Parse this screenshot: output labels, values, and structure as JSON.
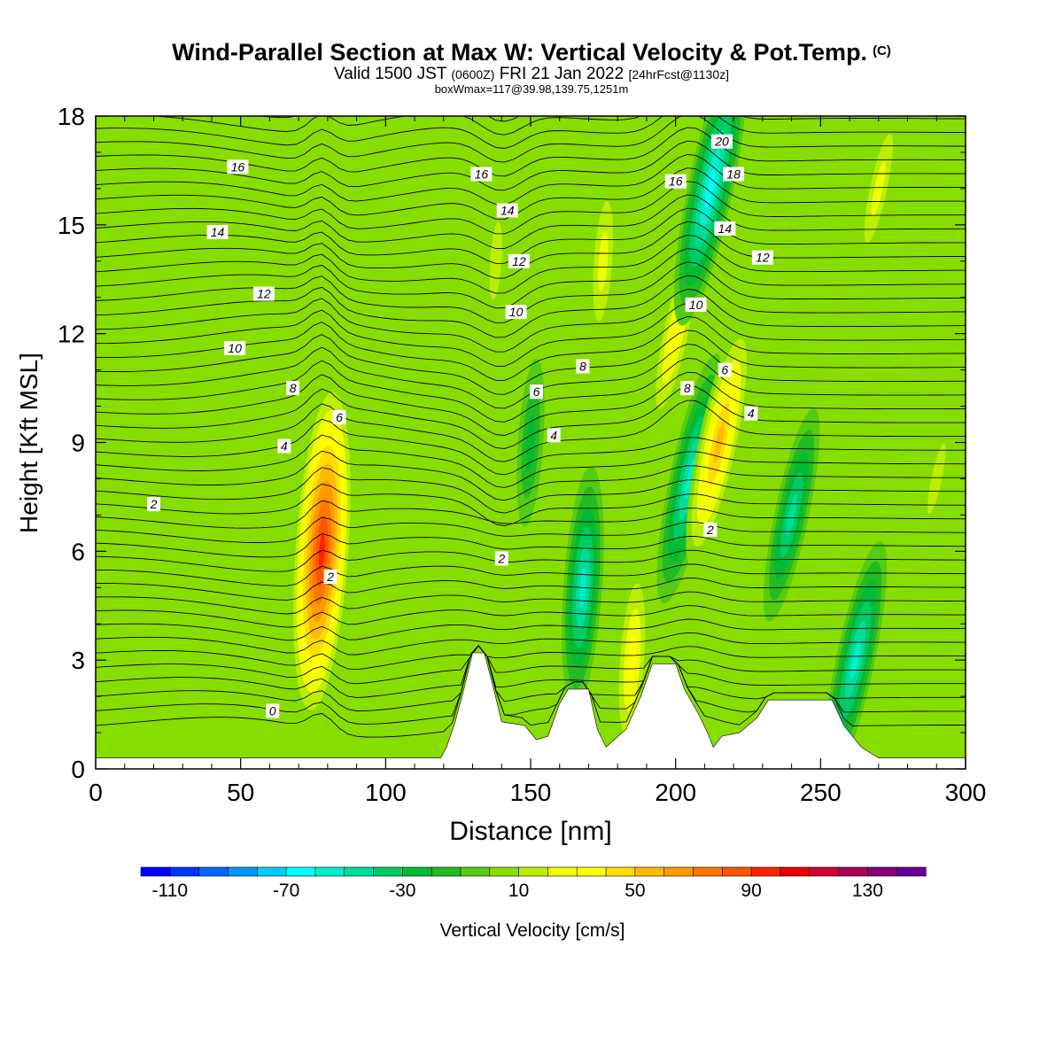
{
  "title": {
    "main": "Wind-Parallel Section at Max W: Vertical Velocity & Pot.Temp.",
    "copyright": "(C)",
    "valid_prefix": "Valid 1500 JST",
    "valid_utc": "(0600Z)",
    "valid_date": "FRI 21 Jan 2022",
    "forecast": "[24hrFcst@1130z]",
    "box_info": "boxWmax=117@39.98,139.75,1251m"
  },
  "chart_data": {
    "type": "heatmap",
    "xlabel": "Distance [nm]",
    "ylabel": "Height [Kft MSL]",
    "xlim": [
      0,
      300
    ],
    "ylim": [
      0,
      18
    ],
    "x_ticks": [
      "0",
      "50",
      "100",
      "150",
      "200",
      "250",
      "300"
    ],
    "y_ticks": [
      "0",
      "3",
      "6",
      "9",
      "12",
      "15",
      "18"
    ],
    "colorbar": {
      "label": "Vertical Velocity [cm/s]",
      "range": [
        -120,
        150
      ],
      "step": 10,
      "tick_labels": [
        "-110",
        "-70",
        "-30",
        "10",
        "50",
        "90",
        "130"
      ],
      "colors": [
        "#0000ff",
        "#0033ff",
        "#0066ff",
        "#0099ff",
        "#00ccff",
        "#00ffff",
        "#00eecc",
        "#00dd99",
        "#00cc66",
        "#00bb33",
        "#22bb22",
        "#55cc11",
        "#88dd00",
        "#bbee00",
        "#eeff00",
        "#ffff00",
        "#ffdd00",
        "#ffbb00",
        "#ff9900",
        "#ff7700",
        "#ff5500",
        "#ff2200",
        "#ee0000",
        "#cc0033",
        "#aa0055",
        "#880077",
        "#660099"
      ]
    },
    "background_velocity": 0,
    "velocity_features": [
      {
        "x": 78,
        "y": 6,
        "value": 100
      },
      {
        "x": 138,
        "y": 14,
        "value": 20
      },
      {
        "x": 150,
        "y": 9,
        "value": -25
      },
      {
        "x": 168,
        "y": 5,
        "value": -55
      },
      {
        "x": 175,
        "y": 14,
        "value": 30
      },
      {
        "x": 185,
        "y": 3,
        "value": 40
      },
      {
        "x": 200,
        "y": 12,
        "value": 40
      },
      {
        "x": 205,
        "y": 8,
        "value": -60
      },
      {
        "x": 212,
        "y": 16,
        "value": -70
      },
      {
        "x": 215,
        "y": 9,
        "value": 60
      },
      {
        "x": 240,
        "y": 7,
        "value": -45
      },
      {
        "x": 262,
        "y": 3,
        "value": -55
      },
      {
        "x": 270,
        "y": 16,
        "value": 25
      },
      {
        "x": 290,
        "y": 8,
        "value": 15
      }
    ],
    "theta_labels": [
      {
        "text": "0",
        "x": 61,
        "y": 1.6
      },
      {
        "text": "2",
        "x": 20,
        "y": 7.3
      },
      {
        "text": "2",
        "x": 81,
        "y": 5.3
      },
      {
        "text": "2",
        "x": 140,
        "y": 5.8
      },
      {
        "text": "2",
        "x": 212,
        "y": 6.6
      },
      {
        "text": "4",
        "x": 65,
        "y": 8.9
      },
      {
        "text": "4",
        "x": 158,
        "y": 9.2
      },
      {
        "text": "4",
        "x": 226,
        "y": 9.8
      },
      {
        "text": "6",
        "x": 84,
        "y": 9.7
      },
      {
        "text": "6",
        "x": 152,
        "y": 10.4
      },
      {
        "text": "6",
        "x": 217,
        "y": 11.0
      },
      {
        "text": "8",
        "x": 68,
        "y": 10.5
      },
      {
        "text": "8",
        "x": 168,
        "y": 11.1
      },
      {
        "text": "8",
        "x": 204,
        "y": 10.5
      },
      {
        "text": "10",
        "x": 48,
        "y": 11.6
      },
      {
        "text": "10",
        "x": 145,
        "y": 12.6
      },
      {
        "text": "10",
        "x": 207,
        "y": 12.8
      },
      {
        "text": "12",
        "x": 58,
        "y": 13.1
      },
      {
        "text": "12",
        "x": 146,
        "y": 14.0
      },
      {
        "text": "12",
        "x": 230,
        "y": 14.1
      },
      {
        "text": "14",
        "x": 42,
        "y": 14.8
      },
      {
        "text": "14",
        "x": 142,
        "y": 15.4
      },
      {
        "text": "14",
        "x": 217,
        "y": 14.9
      },
      {
        "text": "16",
        "x": 49,
        "y": 16.6
      },
      {
        "text": "16",
        "x": 133,
        "y": 16.4
      },
      {
        "text": "16",
        "x": 200,
        "y": 16.2
      },
      {
        "text": "18",
        "x": 220,
        "y": 16.4
      },
      {
        "text": "20",
        "x": 216,
        "y": 17.3
      }
    ],
    "terrain": [
      [
        0,
        0.3
      ],
      [
        119,
        0.3
      ],
      [
        121,
        0.6
      ],
      [
        124,
        1.3
      ],
      [
        127,
        2.2
      ],
      [
        130,
        3.2
      ],
      [
        134,
        3.2
      ],
      [
        137,
        2.3
      ],
      [
        140,
        1.3
      ],
      [
        148,
        1.2
      ],
      [
        152,
        0.8
      ],
      [
        156,
        0.9
      ],
      [
        160,
        1.8
      ],
      [
        163,
        2.2
      ],
      [
        170,
        2.2
      ],
      [
        173,
        1.1
      ],
      [
        176,
        0.6
      ],
      [
        183,
        1.1
      ],
      [
        188,
        2.0
      ],
      [
        192,
        2.9
      ],
      [
        200,
        2.9
      ],
      [
        203,
        2.2
      ],
      [
        208,
        1.5
      ],
      [
        211,
        1.0
      ],
      [
        213,
        0.6
      ],
      [
        216,
        0.9
      ],
      [
        222,
        1.0
      ],
      [
        228,
        1.4
      ],
      [
        232,
        1.9
      ],
      [
        254,
        1.9
      ],
      [
        258,
        1.2
      ],
      [
        264,
        0.6
      ],
      [
        270,
        0.3
      ],
      [
        300,
        0.3
      ]
    ]
  }
}
